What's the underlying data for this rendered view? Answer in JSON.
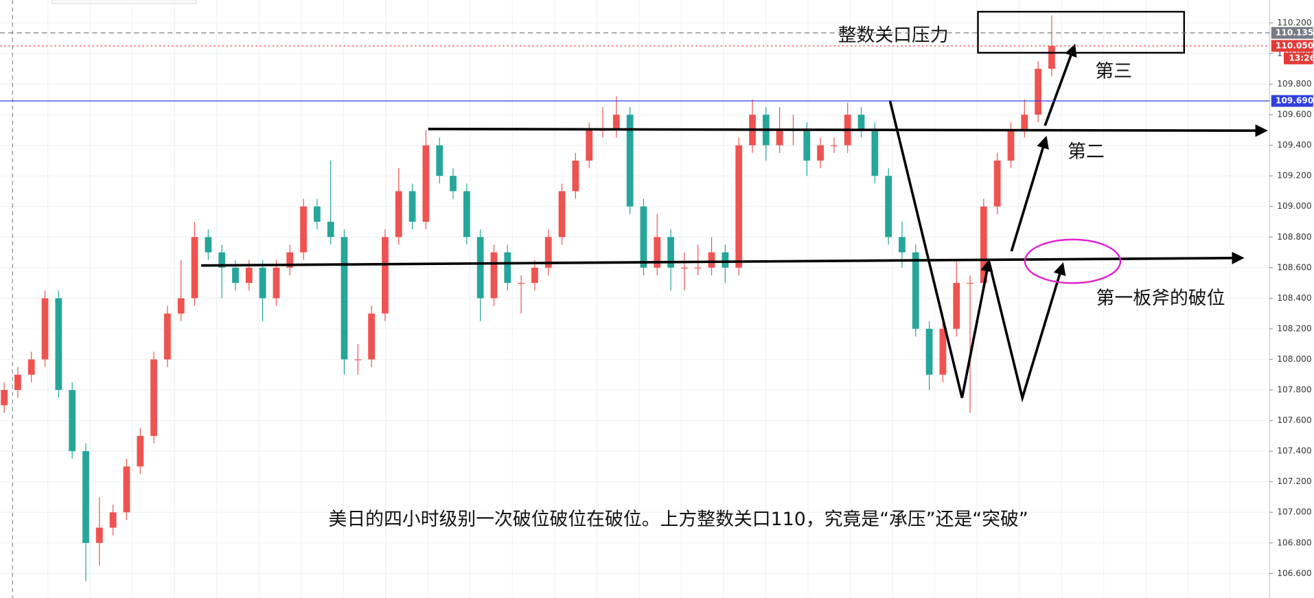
{
  "chart_data": {
    "type": "candlestick",
    "open": [
      107.7,
      107.8,
      107.9,
      108.0,
      108.4,
      107.8,
      107.4,
      106.8,
      106.9,
      107.0,
      107.3,
      107.5,
      108.0,
      108.3,
      108.4,
      108.8,
      108.7,
      108.6,
      108.5,
      108.6,
      108.4,
      108.6,
      108.7,
      109.0,
      108.9,
      108.8,
      108.0,
      108.0,
      108.3,
      108.8,
      109.1,
      108.9,
      109.4,
      109.2,
      109.1,
      108.8,
      108.4,
      108.7,
      108.5,
      108.5,
      108.6,
      108.8,
      109.1,
      109.3,
      109.5,
      109.5,
      109.6,
      109.0,
      108.6,
      108.8,
      108.6,
      108.6,
      108.6,
      108.7,
      108.6,
      109.4,
      109.6,
      109.4,
      109.5,
      109.5,
      109.3,
      109.4,
      109.4,
      109.6,
      109.5,
      109.2,
      108.8,
      108.7,
      108.2,
      107.9,
      108.2,
      108.5,
      108.5,
      109.0,
      109.3,
      109.5,
      109.6,
      109.9
    ],
    "high": [
      107.85,
      107.95,
      108.05,
      108.45,
      108.45,
      107.85,
      107.45,
      107.1,
      107.05,
      107.35,
      107.55,
      108.05,
      108.35,
      108.65,
      108.9,
      108.85,
      108.75,
      108.65,
      108.65,
      108.65,
      108.65,
      108.75,
      109.05,
      109.05,
      109.3,
      108.85,
      108.1,
      108.35,
      108.85,
      109.25,
      109.15,
      109.5,
      109.45,
      109.25,
      109.15,
      108.85,
      108.75,
      108.75,
      108.55,
      108.65,
      108.85,
      109.15,
      109.35,
      109.55,
      109.65,
      109.72,
      109.65,
      109.05,
      108.95,
      108.85,
      108.7,
      108.75,
      108.8,
      108.75,
      109.45,
      109.7,
      109.65,
      109.65,
      109.6,
      109.55,
      109.45,
      109.45,
      109.68,
      109.65,
      109.55,
      109.25,
      108.9,
      108.75,
      108.25,
      108.25,
      108.65,
      108.55,
      109.05,
      109.35,
      109.55,
      109.7,
      109.95,
      110.25
    ],
    "low": [
      107.65,
      107.75,
      107.85,
      107.95,
      107.75,
      107.35,
      106.55,
      106.65,
      106.85,
      106.95,
      107.25,
      107.45,
      107.95,
      108.25,
      108.35,
      108.65,
      108.4,
      108.45,
      108.45,
      108.25,
      108.35,
      108.55,
      108.65,
      108.85,
      108.75,
      107.9,
      107.9,
      107.95,
      108.25,
      108.75,
      108.85,
      108.85,
      109.15,
      109.05,
      108.75,
      108.25,
      108.35,
      108.45,
      108.3,
      108.45,
      108.55,
      108.75,
      109.05,
      109.25,
      109.45,
      109.45,
      108.95,
      108.55,
      108.55,
      108.45,
      108.45,
      108.55,
      108.55,
      108.5,
      108.55,
      109.35,
      109.3,
      109.35,
      109.4,
      109.2,
      109.25,
      109.35,
      109.35,
      109.45,
      109.15,
      108.75,
      108.6,
      108.15,
      107.8,
      107.85,
      108.15,
      107.65,
      108.45,
      108.95,
      109.25,
      109.45,
      109.55,
      109.85
    ],
    "close": [
      107.8,
      107.9,
      108.0,
      108.4,
      107.8,
      107.4,
      106.8,
      106.9,
      107.0,
      107.3,
      107.5,
      108.0,
      108.3,
      108.4,
      108.8,
      108.7,
      108.6,
      108.5,
      108.6,
      108.4,
      108.6,
      108.7,
      109.0,
      108.9,
      108.8,
      108.0,
      108.0,
      108.3,
      108.8,
      109.1,
      108.9,
      109.4,
      109.2,
      109.1,
      108.8,
      108.4,
      108.7,
      108.5,
      108.5,
      108.6,
      108.8,
      109.1,
      109.3,
      109.5,
      109.5,
      109.6,
      109.0,
      108.6,
      108.8,
      108.6,
      108.6,
      108.6,
      108.7,
      108.6,
      109.4,
      109.6,
      109.4,
      109.5,
      109.5,
      109.3,
      109.4,
      109.4,
      109.6,
      109.5,
      109.2,
      108.8,
      108.7,
      108.2,
      107.9,
      108.2,
      108.5,
      108.5,
      109.0,
      109.3,
      109.5,
      109.6,
      109.9,
      110.05
    ],
    "up_color": "#ef5350",
    "down_color": "#26a69a",
    "ylim": [
      106.44,
      110.35
    ],
    "yticks": [
      {
        "value": 106.6,
        "label": "106.600"
      },
      {
        "value": 106.8,
        "label": "106.800"
      },
      {
        "value": 107.0,
        "label": "107.000"
      },
      {
        "value": 107.2,
        "label": "107.200"
      },
      {
        "value": 107.4,
        "label": "107.400"
      },
      {
        "value": 107.6,
        "label": "107.600"
      },
      {
        "value": 107.8,
        "label": "107.800"
      },
      {
        "value": 108.0,
        "label": "108.000"
      },
      {
        "value": 108.2,
        "label": "108.200"
      },
      {
        "value": 108.4,
        "label": "108.400"
      },
      {
        "value": 108.6,
        "label": "108.600"
      },
      {
        "value": 108.8,
        "label": "108.800"
      },
      {
        "value": 109.0,
        "label": "109.000"
      },
      {
        "value": 109.2,
        "label": "109.200"
      },
      {
        "value": 109.4,
        "label": "109.400"
      },
      {
        "value": 109.6,
        "label": "109.600"
      },
      {
        "value": 109.8,
        "label": "109.800"
      },
      {
        "value": 110.0,
        "label": "110.000"
      },
      {
        "value": 110.2,
        "label": "110.200"
      }
    ],
    "grid": true,
    "price_lines": [
      {
        "value": 110.135,
        "label": "110.135",
        "color": "#787b86",
        "style": "dashed"
      },
      {
        "value": 110.05,
        "label": "110.050",
        "color": "#e53935",
        "style": "dotted"
      },
      {
        "value": 109.69,
        "label": "109.690",
        "color": "#2f3fe0",
        "style": "solid"
      }
    ],
    "countdown": "13:26",
    "annotations": {
      "resistance": "整数关口压力",
      "third": "第三",
      "second": "第二",
      "first": "第一板斧的破位",
      "caption": "美日的四小时级别一次破位破位在破位。上方整数关口110，究竟是“承压”还是“突破”"
    }
  }
}
